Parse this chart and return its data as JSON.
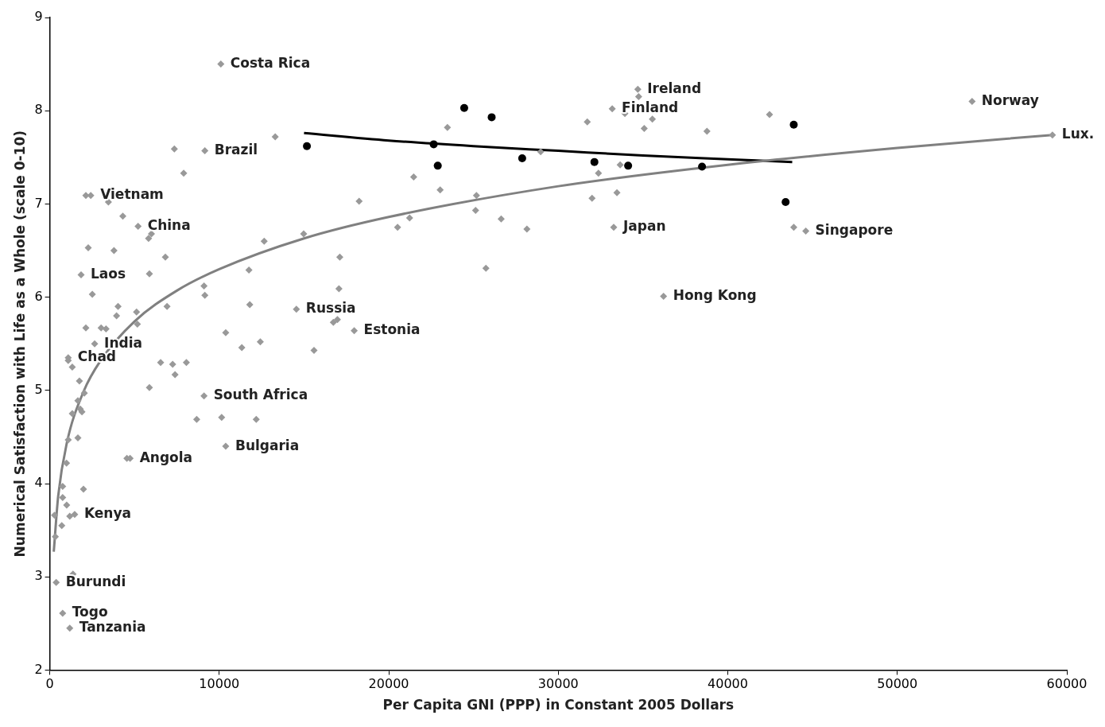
{
  "chart_data": {
    "type": "scatter",
    "xlabel": "Per Capita GNI (PPP) in Constant 2005 Dollars",
    "ylabel": "Numerical Satisfaction with Life as a Whole (scale 0-10)",
    "xlim": [
      0,
      60000
    ],
    "xticks": [
      0,
      10000,
      20000,
      30000,
      40000,
      50000,
      60000
    ],
    "ylim": [
      2,
      9
    ],
    "yticks": [
      2,
      3,
      4,
      5,
      6,
      7,
      8,
      9
    ],
    "grid": false,
    "legend": false,
    "series": [
      {
        "type": "scatter",
        "marker": "diamond",
        "color": "#999999",
        "x": [
          10095,
          9150,
          7350,
          7900,
          13300,
          2130,
          2420,
          3460,
          4310,
          5210,
          5830,
          6000,
          2270,
          3790,
          6820,
          1850,
          5880,
          2510,
          4030,
          3940,
          5120,
          6920,
          3320,
          2130,
          3030,
          2650,
          1090,
          1090,
          1330,
          1750,
          2040,
          1660,
          1800,
          1330,
          1900,
          1090,
          1660,
          990,
          4550,
          4740,
          1990,
          760,
          1000,
          1180,
          1470,
          710,
          280,
          330,
          760,
          380,
          1370,
          760,
          1180,
          9100,
          9150,
          11750,
          12650,
          11800,
          10380,
          12420,
          11330,
          5170,
          6540,
          7250,
          8060,
          7390,
          5880,
          9100,
          8670,
          10140,
          12180,
          10380,
          21470,
          23030,
          23460,
          18250,
          20520,
          21230,
          14980,
          17110,
          17060,
          14550,
          16730,
          16970,
          17960,
          15590,
          34690,
          34740,
          33180,
          33930,
          35550,
          35070,
          31710,
          38770,
          42460,
          28960,
          33650,
          32370,
          25170,
          25120,
          26630,
          28150,
          31990,
          33460,
          33270,
          43890,
          44600,
          25730,
          36210,
          54410,
          59150
        ],
        "values": [
          8.5,
          7.57,
          7.59,
          7.33,
          7.72,
          7.09,
          7.09,
          7.02,
          6.87,
          6.76,
          6.63,
          6.68,
          6.53,
          6.5,
          6.43,
          6.24,
          6.25,
          6.03,
          5.9,
          5.8,
          5.84,
          5.9,
          5.66,
          5.67,
          5.67,
          5.5,
          5.35,
          5.32,
          5.25,
          5.1,
          4.97,
          4.89,
          4.8,
          4.75,
          4.77,
          4.47,
          4.49,
          4.22,
          4.27,
          4.27,
          3.94,
          3.97,
          3.77,
          3.65,
          3.67,
          3.55,
          3.66,
          3.43,
          3.85,
          2.94,
          3.03,
          2.61,
          2.45,
          6.12,
          6.02,
          6.29,
          6.6,
          5.92,
          5.62,
          5.52,
          5.46,
          5.71,
          5.3,
          5.28,
          5.3,
          5.17,
          5.03,
          4.94,
          4.69,
          4.71,
          4.69,
          4.4,
          7.29,
          7.15,
          7.82,
          7.03,
          6.75,
          6.85,
          6.68,
          6.43,
          6.09,
          5.87,
          5.73,
          5.76,
          5.64,
          5.43,
          8.23,
          8.15,
          8.02,
          7.97,
          7.91,
          7.81,
          7.88,
          7.78,
          7.96,
          7.56,
          7.42,
          7.33,
          7.09,
          6.93,
          6.84,
          6.73,
          7.06,
          7.12,
          6.75,
          6.75,
          6.71,
          6.31,
          6.01,
          8.1,
          7.74
        ]
      },
      {
        "type": "scatter",
        "marker": "circle",
        "color": "#000000",
        "x": [
          15170,
          22650,
          22890,
          24450,
          26070,
          27870,
          32130,
          34120,
          38480,
          43410,
          43890
        ],
        "values": [
          7.62,
          7.64,
          7.41,
          8.03,
          7.93,
          7.49,
          7.45,
          7.41,
          7.4,
          7.02,
          7.85
        ]
      },
      {
        "type": "line",
        "marker": "none",
        "color": "#808080",
        "x": [
          237,
          500,
          1000,
          2000,
          3000,
          5000,
          7500,
          10000,
          15000,
          20000,
          30000,
          40000,
          50000,
          59150
        ],
        "values": [
          3.27,
          3.87,
          4.43,
          4.99,
          5.32,
          5.74,
          6.07,
          6.3,
          6.63,
          6.86,
          7.19,
          7.42,
          7.6,
          7.74
        ]
      },
      {
        "type": "line",
        "marker": "none",
        "color": "#000000",
        "x": [
          15000,
          20000,
          25000,
          30000,
          35000,
          40000,
          43800
        ],
        "values": [
          7.76,
          7.68,
          7.62,
          7.57,
          7.52,
          7.48,
          7.45
        ]
      }
    ],
    "annotations": [
      {
        "text": "Costa Rica",
        "x": 10095,
        "y": 8.5
      },
      {
        "text": "Brazil",
        "x": 9150,
        "y": 7.57
      },
      {
        "text": "Vietnam",
        "x": 2420,
        "y": 7.09
      },
      {
        "text": "China",
        "x": 5210,
        "y": 6.76
      },
      {
        "text": "Laos",
        "x": 1850,
        "y": 6.24
      },
      {
        "text": "India",
        "x": 2650,
        "y": 5.5
      },
      {
        "text": "Chad",
        "x": 1090,
        "y": 5.35
      },
      {
        "text": "Angola",
        "x": 4740,
        "y": 4.27
      },
      {
        "text": "Kenya",
        "x": 1470,
        "y": 3.67
      },
      {
        "text": "Burundi",
        "x": 380,
        "y": 2.94
      },
      {
        "text": "Togo",
        "x": 760,
        "y": 2.61
      },
      {
        "text": "Tanzania",
        "x": 1180,
        "y": 2.45
      },
      {
        "text": "Russia",
        "x": 14550,
        "y": 5.87
      },
      {
        "text": "Estonia",
        "x": 17960,
        "y": 5.64
      },
      {
        "text": "South Africa",
        "x": 9100,
        "y": 4.94
      },
      {
        "text": "Bulgaria",
        "x": 10380,
        "y": 4.4
      },
      {
        "text": "Ireland",
        "x": 34690,
        "y": 8.23
      },
      {
        "text": "Finland",
        "x": 33180,
        "y": 8.02
      },
      {
        "text": "Japan",
        "x": 33270,
        "y": 6.75
      },
      {
        "text": "Singapore",
        "x": 44600,
        "y": 6.71
      },
      {
        "text": "Hong Kong",
        "x": 36210,
        "y": 6.01
      },
      {
        "text": "Norway",
        "x": 54410,
        "y": 8.1
      },
      {
        "text": "Lux.",
        "x": 59150,
        "y": 7.74
      }
    ]
  }
}
